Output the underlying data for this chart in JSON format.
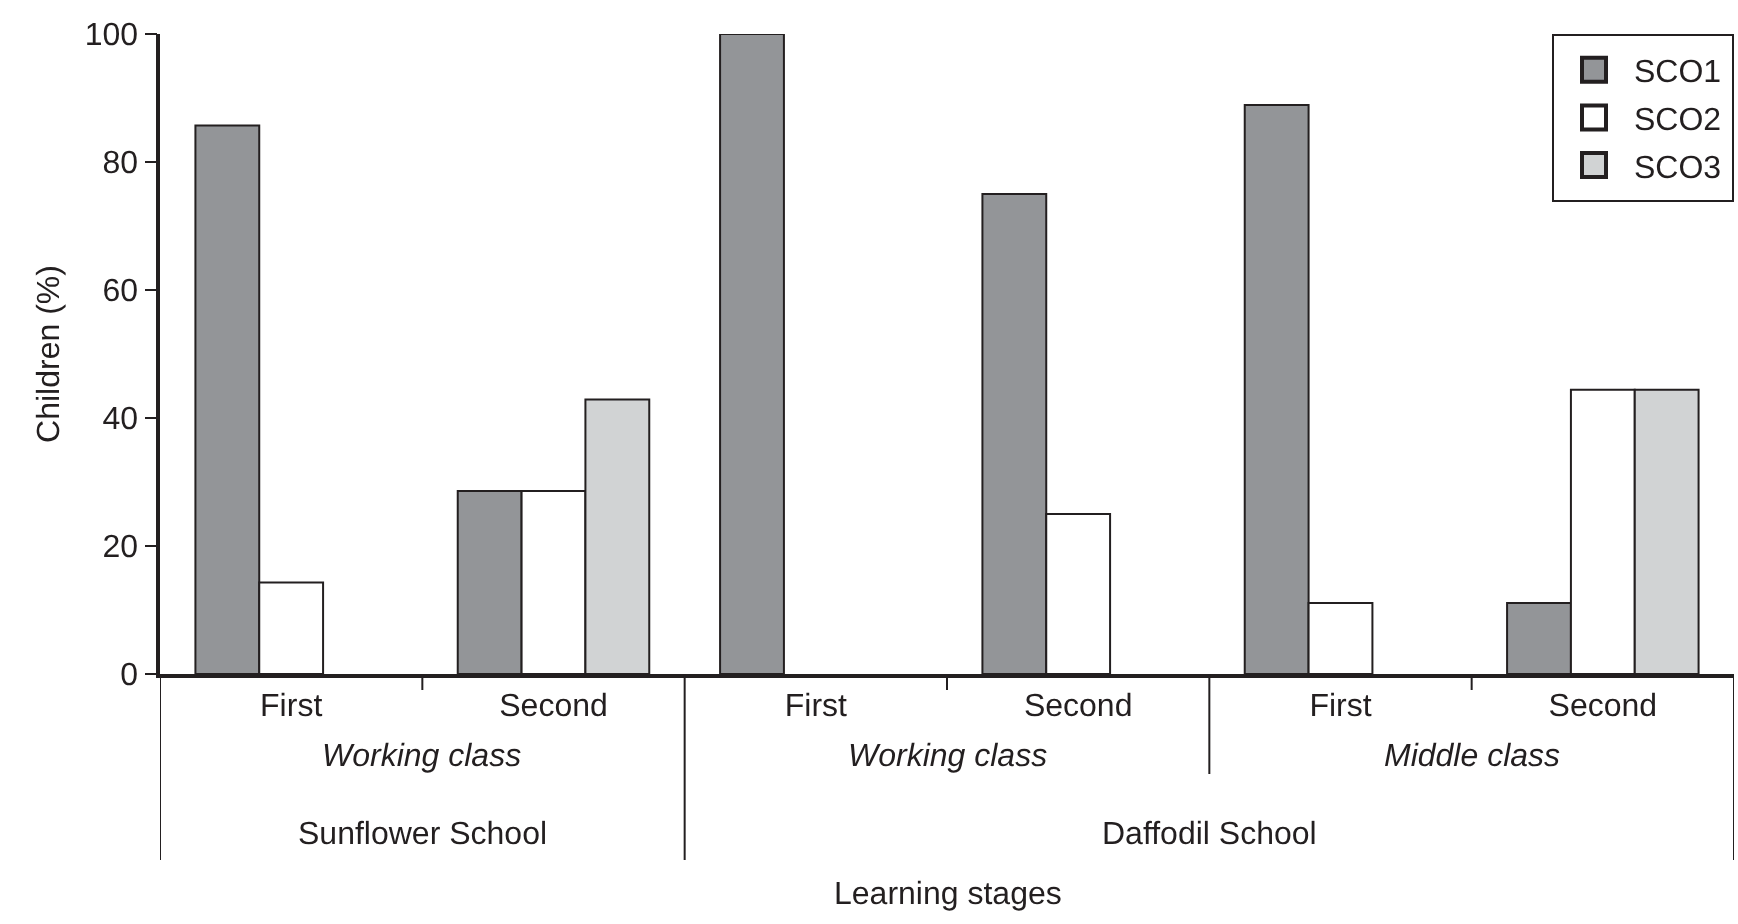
{
  "chart_data": {
    "type": "bar",
    "xlabel": "Learning stages",
    "ylabel": "Children (%)",
    "categories": [
      "First",
      "Second",
      "First",
      "Second",
      "First",
      "Second"
    ],
    "series": [
      {
        "name": "SCO1",
        "color": "#939598",
        "values": [
          85.7,
          28.6,
          100,
          75,
          88.9,
          11.1
        ]
      },
      {
        "name": "SCO2",
        "color": "#ffffff",
        "values": [
          14.3,
          28.6,
          0,
          25,
          11.1,
          44.4
        ]
      },
      {
        "name": "SCO3",
        "color": "#d1d3d4",
        "values": [
          0,
          42.9,
          0,
          0,
          0,
          44.4
        ]
      }
    ],
    "annotations": [
      "Working class",
      "Working class",
      "Middle class",
      "Sunflower School",
      "Daffodil School"
    ],
    "ylim": [
      0,
      100
    ],
    "yticks": [
      0,
      20,
      40,
      60,
      80,
      100
    ],
    "legend": "top right"
  }
}
